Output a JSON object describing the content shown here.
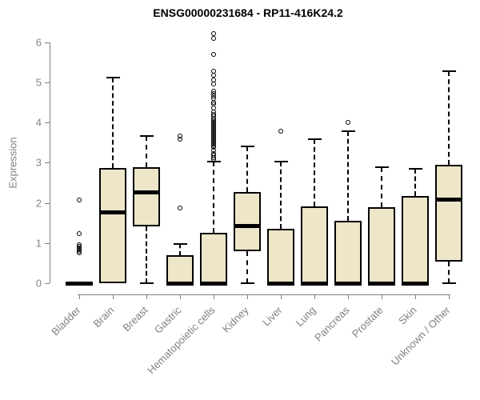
{
  "title": "ENSG00000231684 - RP11-416K24.2",
  "y_axis": {
    "label": "Expression",
    "ticks": [
      0,
      1,
      2,
      3,
      4,
      5,
      6
    ]
  },
  "colors": {
    "box_fill": "#EDE6C8",
    "box_border": "#000000",
    "median": "#000000",
    "axis": "#808080",
    "tick_label_text": "#848484",
    "category_label_text": "#808080",
    "title_text": "#000000"
  },
  "chart_data": {
    "type": "boxplot",
    "title": "ENSG00000231684 - RP11-416K24.2",
    "xlabel": "",
    "ylabel": "Expression",
    "ylim": [
      0,
      6
    ],
    "grid": false,
    "categories": [
      "Bladder",
      "Brain",
      "Breast",
      "Gastric",
      "Hematopoietic cells",
      "Kidney",
      "Liver",
      "Lung",
      "Pancreas",
      "Prostate",
      "Skin",
      "Unknown / Other"
    ],
    "boxes": [
      {
        "category": "Bladder",
        "whisker_low": 0,
        "q1": 0,
        "median": 0,
        "q3": 0.04,
        "whisker_high": 0.04,
        "outliers": [
          0.75,
          0.79,
          0.83,
          0.87,
          0.91,
          0.95,
          1.22,
          2.07
        ]
      },
      {
        "category": "Brain",
        "whisker_low": 0,
        "q1": 0,
        "median": 1.77,
        "q3": 2.87,
        "whisker_high": 5.12,
        "outliers": []
      },
      {
        "category": "Breast",
        "whisker_low": 0,
        "q1": 1.41,
        "median": 2.27,
        "q3": 2.89,
        "whisker_high": 3.67,
        "outliers": []
      },
      {
        "category": "Gastric",
        "whisker_low": 0,
        "q1": 0,
        "median": 0,
        "q3": 0.7,
        "whisker_high": 0.97,
        "outliers": [
          1.87,
          3.58,
          3.66
        ]
      },
      {
        "category": "Hematopoietic cells",
        "whisker_low": 0,
        "q1": 0,
        "median": 0,
        "q3": 1.25,
        "whisker_high": 3.02,
        "outliers": [
          3.08,
          3.12,
          3.18,
          3.22,
          3.3,
          3.38,
          3.42,
          3.46,
          3.5,
          3.54,
          3.58,
          3.62,
          3.66,
          3.7,
          3.74,
          3.78,
          3.82,
          3.86,
          3.9,
          3.94,
          3.98,
          4.02,
          4.06,
          4.1,
          4.15,
          4.2,
          4.25,
          4.35,
          4.45,
          4.5,
          4.6,
          4.65,
          4.72,
          4.78,
          4.95,
          5.05,
          5.18,
          5.28,
          5.7,
          6.08,
          6.2
        ]
      },
      {
        "category": "Kidney",
        "whisker_low": 0,
        "q1": 0.8,
        "median": 1.43,
        "q3": 2.27,
        "whisker_high": 3.4,
        "outliers": []
      },
      {
        "category": "Liver",
        "whisker_low": 0,
        "q1": 0,
        "median": 0,
        "q3": 1.35,
        "whisker_high": 3.02,
        "outliers": [
          3.78
        ]
      },
      {
        "category": "Lung",
        "whisker_low": 0,
        "q1": 0,
        "median": 0,
        "q3": 1.91,
        "whisker_high": 3.58,
        "outliers": []
      },
      {
        "category": "Pancreas",
        "whisker_low": 0,
        "q1": 0,
        "median": 0,
        "q3": 1.55,
        "whisker_high": 3.78,
        "outliers": [
          4.0
        ]
      },
      {
        "category": "Prostate",
        "whisker_low": 0,
        "q1": 0,
        "median": 0,
        "q3": 1.89,
        "whisker_high": 2.9,
        "outliers": []
      },
      {
        "category": "Skin",
        "whisker_low": 0,
        "q1": 0,
        "median": 0,
        "q3": 2.18,
        "whisker_high": 2.86,
        "outliers": []
      },
      {
        "category": "Unknown / Other",
        "whisker_low": 0,
        "q1": 0.53,
        "median": 2.09,
        "q3": 2.95,
        "whisker_high": 5.28,
        "outliers": []
      }
    ]
  }
}
